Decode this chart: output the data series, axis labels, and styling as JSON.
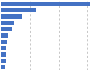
{
  "values": [
    30.9,
    12.1,
    7.3,
    4.5,
    3.9,
    2.5,
    2.1,
    1.9,
    1.8,
    1.6,
    1.4
  ],
  "bar_color": "#4472c4",
  "background_color": "#ffffff",
  "grid_color": "#b0b0b0",
  "xlim": [
    0,
    34
  ],
  "bar_height": 0.72,
  "figsize": [
    1.0,
    0.71
  ],
  "dpi": 100
}
